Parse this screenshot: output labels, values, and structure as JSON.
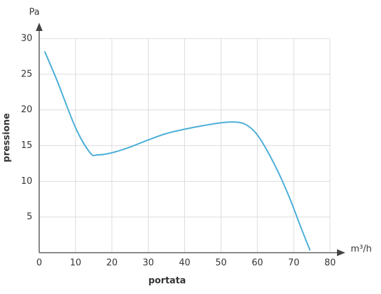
{
  "chart_data": {
    "type": "line",
    "x_unit": "m³/h",
    "y_unit": "Pa",
    "x_label": "portata",
    "y_label": "pressione",
    "series": [
      {
        "color": "#4aaed8",
        "x": [
          1.5,
          5,
          10,
          14,
          16,
          20,
          25,
          30,
          35,
          40,
          45,
          50,
          54,
          57,
          60,
          63,
          66,
          69,
          72,
          74.5
        ],
        "values": [
          28.2,
          24,
          17.5,
          14,
          13.7,
          14,
          14.8,
          15.8,
          16.7,
          17.3,
          17.8,
          18.2,
          18.3,
          17.9,
          16.5,
          14,
          11,
          7.5,
          3.5,
          0.3
        ]
      }
    ],
    "xlim": [
      0,
      80
    ],
    "xticks": [
      0,
      10,
      20,
      30,
      40,
      50,
      60,
      70,
      80
    ],
    "ylim": [
      0,
      30
    ],
    "yticks": [
      5,
      10,
      15,
      20,
      25,
      30
    ],
    "grid": true
  }
}
